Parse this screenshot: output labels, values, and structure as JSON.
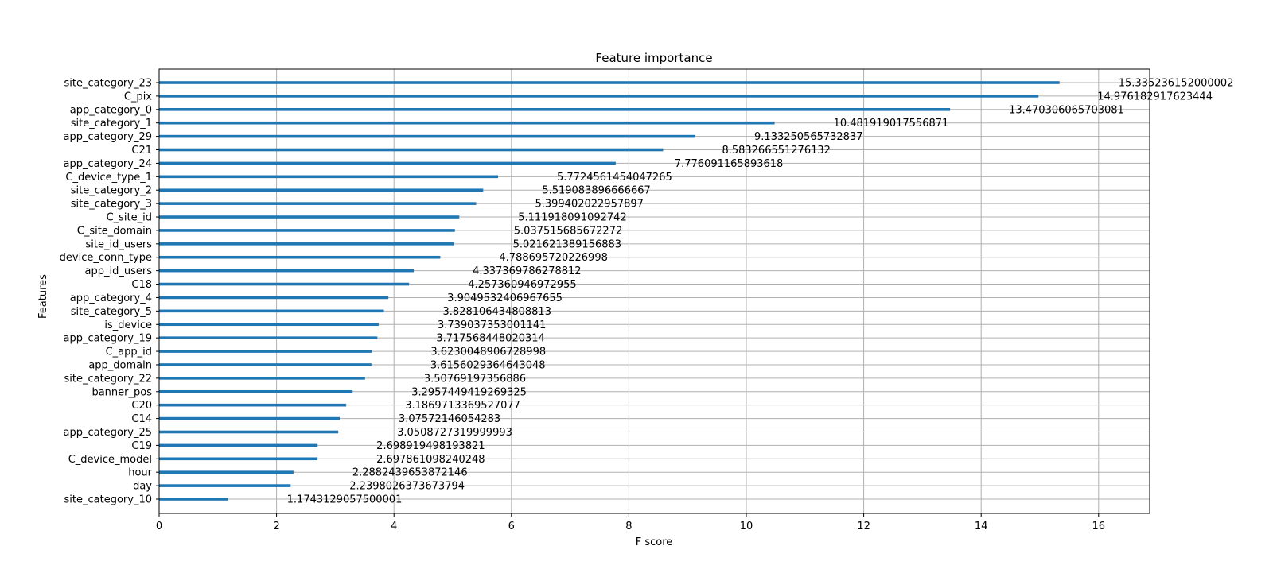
{
  "chart_data": {
    "type": "bar",
    "orientation": "horizontal",
    "title": "Feature importance",
    "xlabel": "F score",
    "ylabel": "Features",
    "xlim": [
      0,
      16.87
    ],
    "xticks": [
      0,
      2,
      4,
      6,
      8,
      10,
      12,
      14,
      16
    ],
    "grid": true,
    "bar_color": "#1f77b4",
    "categories": [
      "site_category_23",
      "C_pix",
      "app_category_0",
      "site_category_1",
      "app_category_29",
      "C21",
      "app_category_24",
      "C_device_type_1",
      "site_category_2",
      "site_category_3",
      "C_site_id",
      "C_site_domain",
      "site_id_users",
      "device_conn_type",
      "app_id_users",
      "C18",
      "app_category_4",
      "site_category_5",
      "is_device",
      "app_category_19",
      "C_app_id",
      "app_domain",
      "site_category_22",
      "banner_pos",
      "C20",
      "C14",
      "app_category_25",
      "C19",
      "C_device_model",
      "hour",
      "day",
      "site_category_10"
    ],
    "values": [
      15.335236152000002,
      14.976182917623444,
      13.470306065703081,
      10.481919017556871,
      9.133250565732837,
      8.583266551276132,
      7.776091165893618,
      5.7724561454047265,
      5.519083896666667,
      5.399402022957897,
      5.111918091092742,
      5.037515685672272,
      5.021621389156883,
      4.788695720226998,
      4.337369786278812,
      4.257360946972955,
      3.9049532406967655,
      3.828106434808813,
      3.739037353001141,
      3.717568448020314,
      3.6230048906728998,
      3.6156029364643048,
      3.50769197356886,
      3.2957449419269325,
      3.1869713369527077,
      3.07572146054283,
      3.0508727319999993,
      2.698919498193821,
      2.697861098240248,
      2.2882439653872146,
      2.2398026373673794,
      1.1743129057500001
    ],
    "value_labels": [
      "15.335236152000002",
      "14.976182917623444",
      "13.470306065703081",
      "10.481919017556871",
      "9.133250565732837",
      "8.583266551276132",
      "7.776091165893618",
      "5.7724561454047265",
      "5.519083896666667",
      "5.399402022957897",
      "5.111918091092742",
      "5.037515685672272",
      "5.021621389156883",
      "4.788695720226998",
      "4.337369786278812",
      "4.257360946972955",
      "3.9049532406967655",
      "3.828106434808813",
      "3.739037353001141",
      "3.717568448020314",
      "3.6230048906728998",
      "3.6156029364643048",
      "3.50769197356886",
      "3.2957449419269325",
      "3.1869713369527077",
      "3.07572146054283",
      "3.0508727319999993",
      "2.698919498193821",
      "2.697861098240248",
      "2.2882439653872146",
      "2.2398026373673794",
      "1.1743129057500001"
    ]
  }
}
